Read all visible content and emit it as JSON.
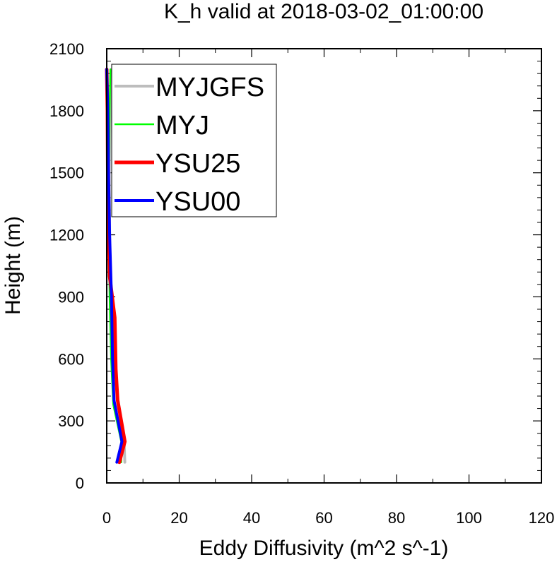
{
  "chart_data": {
    "type": "line",
    "title": "K_h valid at 2018-03-02_01:00:00",
    "xlabel": "Eddy Diffusivity (m^2 s^-1)",
    "ylabel": "Height (m)",
    "xlim": [
      0,
      120
    ],
    "ylim": [
      0,
      2100
    ],
    "xticks": [
      0,
      20,
      40,
      60,
      80,
      100,
      120
    ],
    "yticks": [
      0,
      300,
      600,
      900,
      1200,
      1500,
      1800,
      2100
    ],
    "xtick_labels": [
      "0",
      "20",
      "40",
      "60",
      "80",
      "100",
      "120"
    ],
    "ytick_labels": [
      "0",
      "300",
      "600",
      "900",
      "1200",
      "1500",
      "1800",
      "2100"
    ],
    "grid": false,
    "legend_position": "top-left",
    "series": [
      {
        "name": "MYJGFS",
        "color": "#bdbdbd",
        "points": [
          [
            5.0,
            100
          ],
          [
            4.8,
            200
          ],
          [
            2.0,
            380
          ],
          [
            1.4,
            600
          ],
          [
            1.0,
            900
          ],
          [
            0.8,
            1200
          ],
          [
            0.7,
            1500
          ],
          [
            0.9,
            1800
          ],
          [
            1.2,
            2000
          ]
        ]
      },
      {
        "name": "MYJ",
        "color": "#00ff00",
        "points": [
          [
            4.0,
            100
          ],
          [
            4.0,
            200
          ],
          [
            1.8,
            380
          ],
          [
            1.2,
            600
          ],
          [
            0.8,
            900
          ],
          [
            0.6,
            1200
          ],
          [
            0.6,
            1500
          ],
          [
            0.8,
            1800
          ],
          [
            1.0,
            2000
          ]
        ]
      },
      {
        "name": "YSU25",
        "color": "#ff0000",
        "points": [
          [
            3.5,
            100
          ],
          [
            5.0,
            200
          ],
          [
            3.0,
            400
          ],
          [
            2.5,
            550
          ],
          [
            2.2,
            800
          ],
          [
            0.8,
            1000
          ],
          [
            0.6,
            1200
          ],
          [
            0.3,
            1500
          ],
          [
            0.2,
            1800
          ],
          [
            0.0,
            2000
          ]
        ]
      },
      {
        "name": "YSU00",
        "color": "#0000ff",
        "points": [
          [
            2.8,
            100
          ],
          [
            4.2,
            200
          ],
          [
            2.0,
            400
          ],
          [
            1.6,
            600
          ],
          [
            1.3,
            900
          ],
          [
            0.8,
            1200
          ],
          [
            0.5,
            1500
          ],
          [
            0.3,
            1800
          ],
          [
            0.0,
            2000
          ]
        ]
      }
    ]
  }
}
